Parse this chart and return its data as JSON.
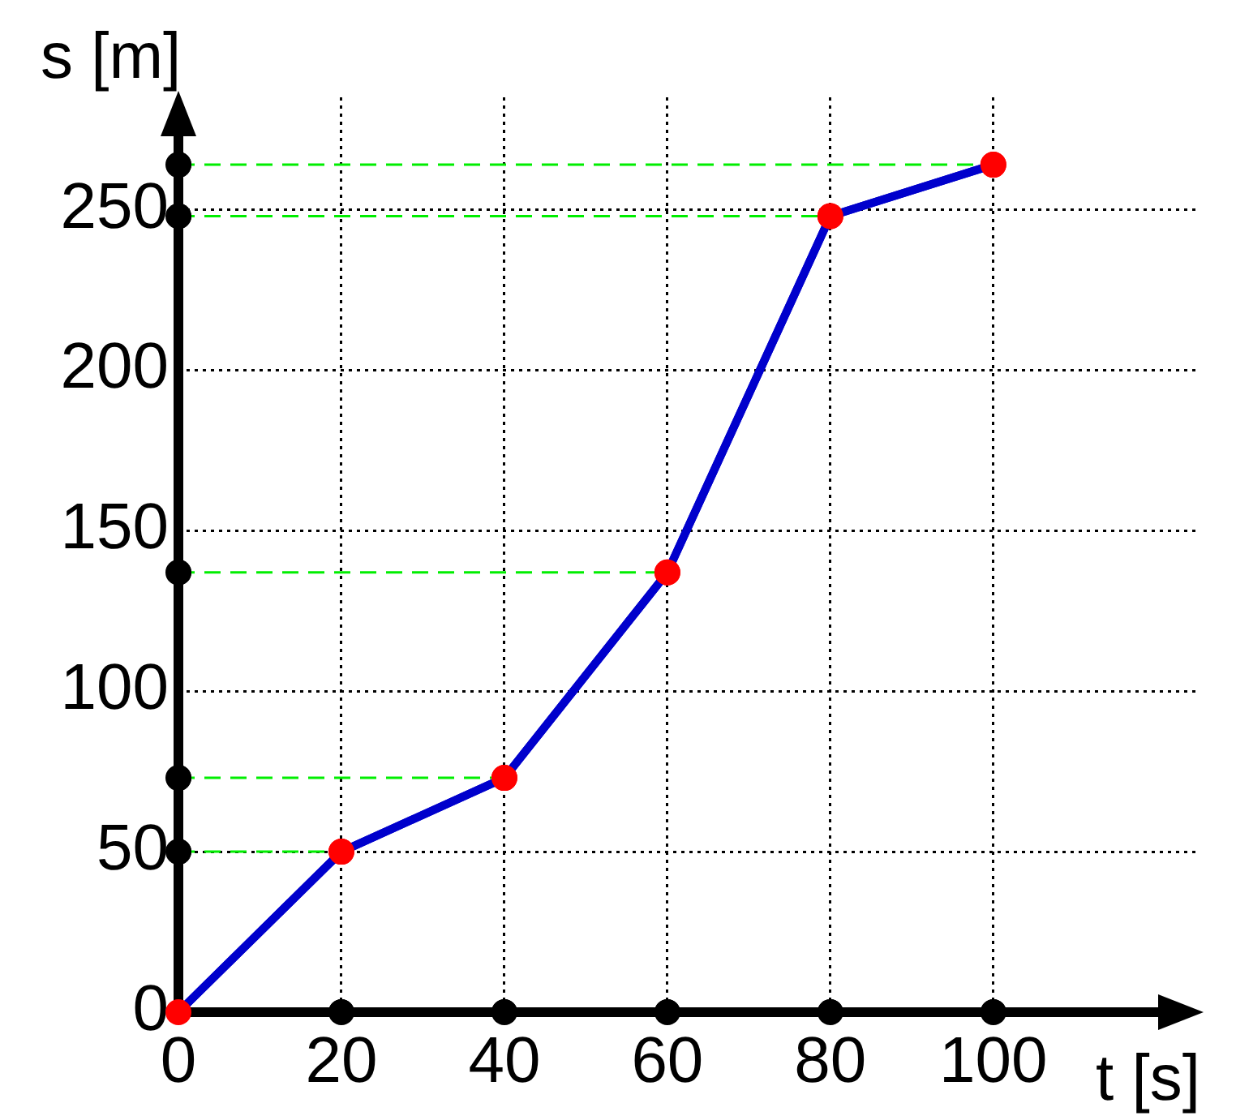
{
  "chart_data": {
    "type": "line",
    "xlabel": "t [s]",
    "ylabel": "s [m]",
    "x": [
      0,
      20,
      40,
      60,
      80,
      100
    ],
    "series": [
      {
        "color": "#0000cc",
        "values": [
          0,
          50,
          73,
          137,
          248,
          264
        ]
      },
      {
        "type": "scatter",
        "color": "#000000",
        "x": [
          0,
          0,
          0,
          0,
          0,
          20,
          40,
          60,
          80,
          100
        ],
        "values": [
          50,
          73,
          137,
          248,
          264,
          0,
          0,
          0,
          0,
          0
        ]
      }
    ],
    "marker": "circle",
    "line_style": "solid",
    "grid": true,
    "xlim": [
      0,
      125
    ],
    "ylim": [
      0,
      285
    ],
    "xticks": [
      0,
      20,
      40,
      60,
      80,
      100
    ],
    "yticks": [
      0,
      50,
      100,
      150,
      200,
      250
    ],
    "ref_lines": [
      {
        "axis": "y",
        "value": 50,
        "color": "#00ee00",
        "line_style": "dashed"
      },
      {
        "axis": "y",
        "value": 73,
        "color": "#00ee00",
        "line_style": "dashed"
      },
      {
        "axis": "y",
        "value": 137,
        "color": "#00ee00",
        "line_style": "dashed"
      },
      {
        "axis": "y",
        "value": 248,
        "color": "#00ee00",
        "line_style": "dashed"
      },
      {
        "axis": "y",
        "value": 264,
        "color": "#00ee00",
        "line_style": "dashed"
      }
    ],
    "legend": false
  }
}
